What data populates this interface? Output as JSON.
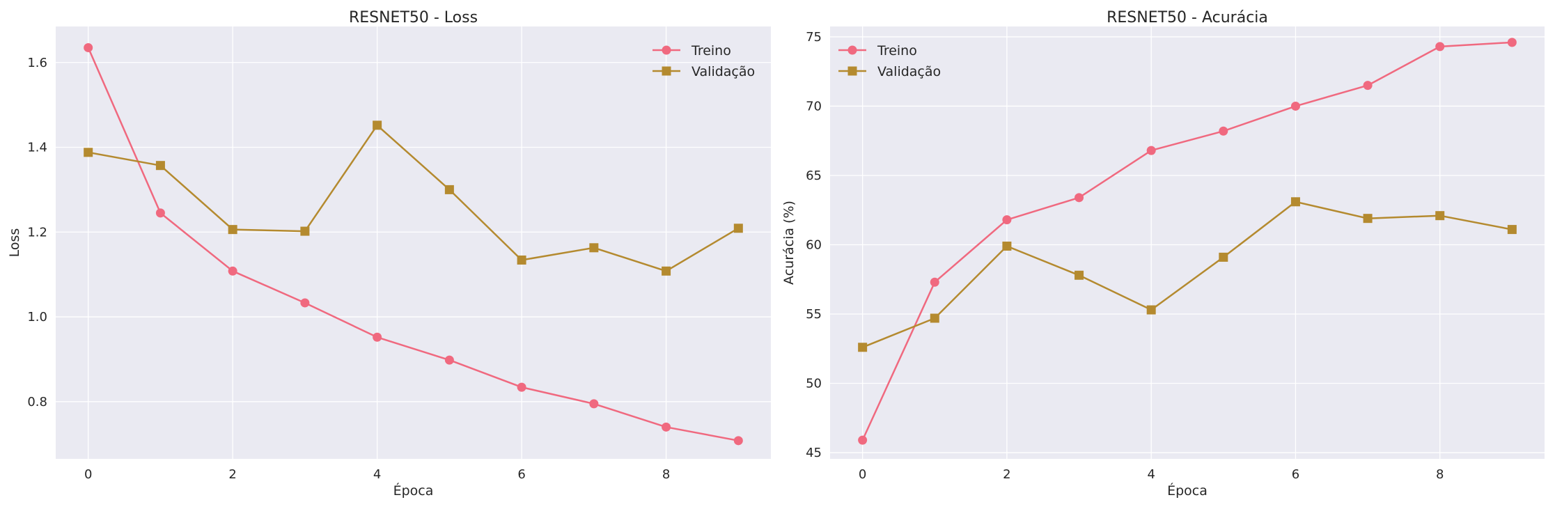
{
  "colors": {
    "background": "#ffffff",
    "plot_area": "#eaeaf2",
    "grid": "#ffffff",
    "text": "#262626",
    "treino": "#f0697f",
    "validacao": "#b48a2f"
  },
  "chart_data": [
    {
      "type": "line",
      "title": "RESNET50 - Loss",
      "xlabel": "Época",
      "ylabel": "Loss",
      "x": [
        0,
        1,
        2,
        3,
        4,
        5,
        6,
        7,
        8,
        9
      ],
      "xlim": [
        -0.45,
        9.45
      ],
      "ylim": [
        0.665,
        1.685
      ],
      "xticks": [
        0,
        2,
        4,
        6,
        8
      ],
      "yticks": [
        0.8,
        1.0,
        1.2,
        1.4,
        1.6
      ],
      "ytick_labels": [
        "0.8",
        "1.0",
        "1.2",
        "1.4",
        "1.6"
      ],
      "grid": true,
      "legend_position": "upper right",
      "series": [
        {
          "name": "Treino",
          "marker": "circle",
          "color": "#f0697f",
          "values": [
            1.635,
            1.245,
            1.108,
            1.033,
            0.952,
            0.898,
            0.834,
            0.795,
            0.74,
            0.708
          ]
        },
        {
          "name": "Validação",
          "marker": "square",
          "color": "#b48a2f",
          "values": [
            1.388,
            1.357,
            1.206,
            1.202,
            1.452,
            1.3,
            1.134,
            1.163,
            1.108,
            1.209
          ]
        }
      ]
    },
    {
      "type": "line",
      "title": "RESNET50 - Acurácia",
      "xlabel": "Época",
      "ylabel": "Acurácia (%)",
      "x": [
        0,
        1,
        2,
        3,
        4,
        5,
        6,
        7,
        8,
        9
      ],
      "xlim": [
        -0.45,
        9.45
      ],
      "ylim": [
        44.55,
        75.75
      ],
      "xticks": [
        0,
        2,
        4,
        6,
        8
      ],
      "yticks": [
        45,
        50,
        55,
        60,
        65,
        70,
        75
      ],
      "ytick_labels": [
        "45",
        "50",
        "55",
        "60",
        "65",
        "70",
        "75"
      ],
      "grid": true,
      "legend_position": "upper left",
      "series": [
        {
          "name": "Treino",
          "marker": "circle",
          "color": "#f0697f",
          "values": [
            45.9,
            57.3,
            61.8,
            63.4,
            66.8,
            68.2,
            70.0,
            71.5,
            74.3,
            74.6
          ]
        },
        {
          "name": "Validação",
          "marker": "square",
          "color": "#b48a2f",
          "values": [
            52.6,
            54.7,
            59.9,
            57.8,
            55.3,
            59.1,
            63.1,
            61.9,
            62.1,
            61.1
          ]
        }
      ]
    }
  ]
}
